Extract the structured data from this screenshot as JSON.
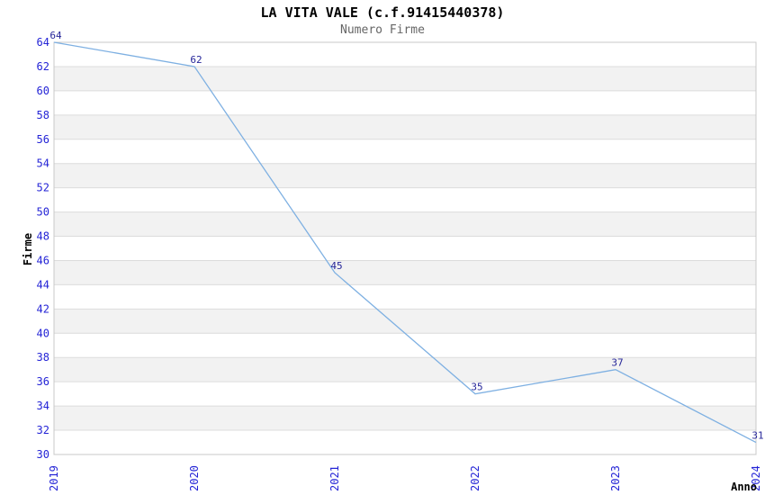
{
  "chart_data": {
    "type": "line",
    "title": "LA VITA VALE (c.f.91415440378)",
    "subtitle": "Numero Firme",
    "xlabel": "Anno",
    "ylabel": "Firme",
    "categories": [
      "2019",
      "2020",
      "2021",
      "2022",
      "2023",
      "2024"
    ],
    "values": [
      64,
      62,
      45,
      35,
      37,
      31
    ],
    "ylim": [
      30,
      64
    ],
    "y_ticks": [
      30,
      32,
      34,
      36,
      38,
      40,
      42,
      44,
      46,
      48,
      50,
      52,
      54,
      56,
      58,
      60,
      62,
      64
    ],
    "grid": "horizontal-alternating-bands",
    "legend": "none",
    "colors": {
      "line": "#7eb0e2",
      "tick_label": "#2424d6",
      "data_label": "#262699",
      "band_fill": "#f2f2f2",
      "grid_line": "#dcdcdc",
      "plot_border": "#c8c8c8",
      "title": "#000000",
      "subtitle": "#666666",
      "axis_title": "#000000",
      "background": "#ffffff"
    }
  }
}
